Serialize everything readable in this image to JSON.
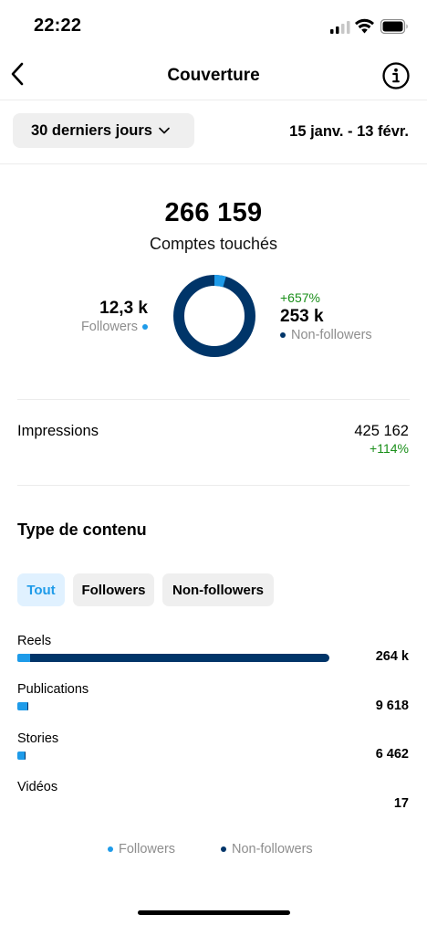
{
  "status_bar": {
    "time": "22:22",
    "icons": [
      "signal-icon",
      "wifi-icon",
      "battery-icon"
    ]
  },
  "header": {
    "title": "Couverture",
    "back_icon": "back-chevron-icon",
    "info_icon": "info-icon"
  },
  "period": {
    "selected": "30 derniers jours",
    "date_range": "15 janv. - 13 févr."
  },
  "summary": {
    "total": "266 159",
    "total_label": "Comptes touchés",
    "followers_value": "12,3 k",
    "followers_label": "Followers",
    "nonfollowers_change": "+657%",
    "nonfollowers_value": "253 k",
    "nonfollowers_label": "Non-followers",
    "followers_share": 0.046
  },
  "impressions": {
    "label": "Impressions",
    "value": "425 162",
    "change": "+114%"
  },
  "content_type": {
    "title": "Type de contenu",
    "filters": [
      "Tout",
      "Followers",
      "Non-followers"
    ],
    "active_filter": "Tout",
    "rows": [
      {
        "label": "Reels",
        "value": "264 k",
        "followers_fraction": 0.04,
        "total_fraction": 1.0
      },
      {
        "label": "Publications",
        "value": "9 618",
        "followers_fraction": 0.032,
        "total_fraction": 0.036
      },
      {
        "label": "Stories",
        "value": "6 462",
        "followers_fraction": 0.024,
        "total_fraction": 0.026
      },
      {
        "label": "Vidéos",
        "value": "17",
        "followers_fraction": 0.0,
        "total_fraction": 0.0
      }
    ]
  },
  "legend": {
    "followers": "Followers",
    "nonfollowers": "Non-followers"
  },
  "colors": {
    "followers": "#1e9be9",
    "nonfollowers": "#003569",
    "positive_change": "#1a8f1a",
    "muted_text": "#8e8e8e",
    "chip_bg": "#efefef",
    "active_chip_bg": "#e0f1ff"
  }
}
